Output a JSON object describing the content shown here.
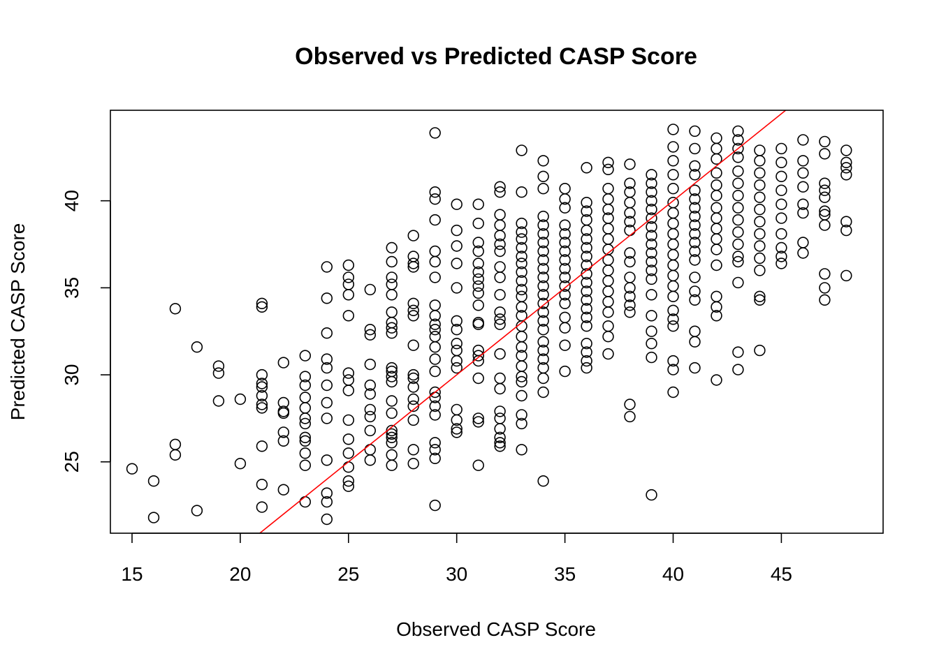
{
  "chart_data": {
    "type": "scatter",
    "title": "Observed vs Predicted CASP Score",
    "xlabel": "Observed CASP Score",
    "ylabel": "Predicted CASP Score",
    "xlim": [
      14,
      49.7
    ],
    "ylim": [
      20.9,
      45.2
    ],
    "xticks": [
      "15",
      "20",
      "25",
      "30",
      "35",
      "40",
      "45"
    ],
    "yticks": [
      "25",
      "30",
      "35",
      "40"
    ],
    "grid": false,
    "colors": {
      "points": "#000000",
      "reference_line": "#ff0000"
    },
    "reference_line": {
      "type": "identity",
      "slope": 1,
      "intercept": 0
    },
    "points": [
      [
        15,
        24.6
      ],
      [
        16,
        23.9
      ],
      [
        16,
        21.8
      ],
      [
        17,
        33.8
      ],
      [
        17,
        26.0
      ],
      [
        17,
        25.4
      ],
      [
        18,
        31.6
      ],
      [
        18,
        22.2
      ],
      [
        19,
        30.5
      ],
      [
        19,
        30.1
      ],
      [
        19,
        28.5
      ],
      [
        20,
        28.6
      ],
      [
        20,
        24.9
      ],
      [
        21,
        34.1
      ],
      [
        21,
        33.9
      ],
      [
        21,
        30.0
      ],
      [
        21,
        29.5
      ],
      [
        21,
        29.3
      ],
      [
        21,
        28.8
      ],
      [
        21,
        28.3
      ],
      [
        21,
        28.1
      ],
      [
        21,
        25.9
      ],
      [
        21,
        23.7
      ],
      [
        21,
        22.4
      ],
      [
        22,
        30.7
      ],
      [
        22,
        28.4
      ],
      [
        22,
        27.9
      ],
      [
        22,
        27.8
      ],
      [
        22,
        26.7
      ],
      [
        22,
        26.2
      ],
      [
        22,
        23.4
      ],
      [
        23,
        31.1
      ],
      [
        23,
        29.9
      ],
      [
        23,
        29.4
      ],
      [
        23,
        28.7
      ],
      [
        23,
        28.1
      ],
      [
        23,
        27.5
      ],
      [
        23,
        27.2
      ],
      [
        23,
        26.4
      ],
      [
        23,
        26.2
      ],
      [
        23,
        25.5
      ],
      [
        23,
        24.8
      ],
      [
        23,
        22.7
      ],
      [
        24,
        36.2
      ],
      [
        24,
        34.4
      ],
      [
        24,
        32.4
      ],
      [
        24,
        30.9
      ],
      [
        24,
        30.4
      ],
      [
        24,
        29.4
      ],
      [
        24,
        28.4
      ],
      [
        24,
        27.5
      ],
      [
        24,
        25.1
      ],
      [
        24,
        23.2
      ],
      [
        24,
        22.7
      ],
      [
        24,
        21.7
      ],
      [
        25,
        36.3
      ],
      [
        25,
        35.6
      ],
      [
        25,
        35.2
      ],
      [
        25,
        34.6
      ],
      [
        25,
        33.4
      ],
      [
        25,
        30.1
      ],
      [
        25,
        29.7
      ],
      [
        25,
        29.1
      ],
      [
        25,
        27.4
      ],
      [
        25,
        26.3
      ],
      [
        25,
        25.5
      ],
      [
        25,
        24.7
      ],
      [
        25,
        23.9
      ],
      [
        25,
        23.6
      ],
      [
        26,
        34.9
      ],
      [
        26,
        32.6
      ],
      [
        26,
        32.3
      ],
      [
        26,
        30.6
      ],
      [
        26,
        29.4
      ],
      [
        26,
        28.9
      ],
      [
        26,
        28.0
      ],
      [
        26,
        27.6
      ],
      [
        26,
        26.8
      ],
      [
        26,
        25.7
      ],
      [
        26,
        25.1
      ],
      [
        27,
        37.3
      ],
      [
        27,
        36.5
      ],
      [
        27,
        35.6
      ],
      [
        27,
        35.2
      ],
      [
        27,
        34.6
      ],
      [
        27,
        33.6
      ],
      [
        27,
        33.0
      ],
      [
        27,
        32.7
      ],
      [
        27,
        32.4
      ],
      [
        27,
        30.4
      ],
      [
        27,
        30.2
      ],
      [
        27,
        29.9
      ],
      [
        27,
        29.6
      ],
      [
        27,
        28.5
      ],
      [
        27,
        27.8
      ],
      [
        27,
        26.8
      ],
      [
        27,
        26.6
      ],
      [
        27,
        26.4
      ],
      [
        27,
        26.1
      ],
      [
        27,
        25.4
      ],
      [
        27,
        24.8
      ],
      [
        28,
        38.0
      ],
      [
        28,
        36.8
      ],
      [
        28,
        36.4
      ],
      [
        28,
        36.2
      ],
      [
        28,
        34.1
      ],
      [
        28,
        33.7
      ],
      [
        28,
        33.4
      ],
      [
        28,
        31.7
      ],
      [
        28,
        30.0
      ],
      [
        28,
        29.8
      ],
      [
        28,
        29.3
      ],
      [
        28,
        28.6
      ],
      [
        28,
        28.2
      ],
      [
        28,
        27.4
      ],
      [
        28,
        25.7
      ],
      [
        28,
        24.9
      ],
      [
        29,
        43.9
      ],
      [
        29,
        40.5
      ],
      [
        29,
        40.1
      ],
      [
        29,
        38.9
      ],
      [
        29,
        37.1
      ],
      [
        29,
        36.5
      ],
      [
        29,
        35.6
      ],
      [
        29,
        34.0
      ],
      [
        29,
        33.4
      ],
      [
        29,
        32.9
      ],
      [
        29,
        32.6
      ],
      [
        29,
        32.2
      ],
      [
        29,
        31.6
      ],
      [
        29,
        30.9
      ],
      [
        29,
        30.2
      ],
      [
        29,
        29.0
      ],
      [
        29,
        28.7
      ],
      [
        29,
        28.2
      ],
      [
        29,
        27.7
      ],
      [
        29,
        26.1
      ],
      [
        29,
        25.7
      ],
      [
        29,
        25.2
      ],
      [
        29,
        22.5
      ],
      [
        30,
        39.8
      ],
      [
        30,
        38.3
      ],
      [
        30,
        37.4
      ],
      [
        30,
        36.4
      ],
      [
        30,
        35.0
      ],
      [
        30,
        33.1
      ],
      [
        30,
        32.6
      ],
      [
        30,
        31.8
      ],
      [
        30,
        31.4
      ],
      [
        30,
        30.8
      ],
      [
        30,
        30.4
      ],
      [
        30,
        28.0
      ],
      [
        30,
        27.4
      ],
      [
        30,
        26.9
      ],
      [
        30,
        26.7
      ],
      [
        31,
        39.8
      ],
      [
        31,
        38.7
      ],
      [
        31,
        37.6
      ],
      [
        31,
        37.1
      ],
      [
        31,
        36.4
      ],
      [
        31,
        35.9
      ],
      [
        31,
        35.5
      ],
      [
        31,
        35.1
      ],
      [
        31,
        34.7
      ],
      [
        31,
        34.0
      ],
      [
        31,
        33.0
      ],
      [
        31,
        32.9
      ],
      [
        31,
        31.4
      ],
      [
        31,
        31.1
      ],
      [
        31,
        30.8
      ],
      [
        31,
        29.8
      ],
      [
        31,
        27.5
      ],
      [
        31,
        27.3
      ],
      [
        31,
        24.8
      ],
      [
        32,
        40.8
      ],
      [
        32,
        40.5
      ],
      [
        32,
        39.2
      ],
      [
        32,
        38.6
      ],
      [
        32,
        38.0
      ],
      [
        32,
        37.5
      ],
      [
        32,
        37.1
      ],
      [
        32,
        36.2
      ],
      [
        32,
        35.6
      ],
      [
        32,
        34.6
      ],
      [
        32,
        33.6
      ],
      [
        32,
        33.2
      ],
      [
        32,
        32.9
      ],
      [
        32,
        31.2
      ],
      [
        32,
        29.8
      ],
      [
        32,
        29.2
      ],
      [
        32,
        27.9
      ],
      [
        32,
        27.5
      ],
      [
        32,
        26.9
      ],
      [
        32,
        26.4
      ],
      [
        32,
        26.1
      ],
      [
        32,
        25.9
      ],
      [
        33,
        42.9
      ],
      [
        33,
        40.5
      ],
      [
        33,
        38.7
      ],
      [
        33,
        38.2
      ],
      [
        33,
        37.8
      ],
      [
        33,
        37.3
      ],
      [
        33,
        36.8
      ],
      [
        33,
        36.4
      ],
      [
        33,
        35.9
      ],
      [
        33,
        35.4
      ],
      [
        33,
        34.9
      ],
      [
        33,
        34.5
      ],
      [
        33,
        33.9
      ],
      [
        33,
        33.4
      ],
      [
        33,
        32.8
      ],
      [
        33,
        32.2
      ],
      [
        33,
        31.6
      ],
      [
        33,
        31.1
      ],
      [
        33,
        30.5
      ],
      [
        33,
        29.9
      ],
      [
        33,
        29.6
      ],
      [
        33,
        28.8
      ],
      [
        33,
        27.7
      ],
      [
        33,
        27.2
      ],
      [
        33,
        25.7
      ],
      [
        34,
        42.3
      ],
      [
        34,
        41.4
      ],
      [
        34,
        40.7
      ],
      [
        34,
        39.1
      ],
      [
        34,
        38.6
      ],
      [
        34,
        38.1
      ],
      [
        34,
        37.6
      ],
      [
        34,
        37.1
      ],
      [
        34,
        36.6
      ],
      [
        34,
        36.1
      ],
      [
        34,
        35.6
      ],
      [
        34,
        35.1
      ],
      [
        34,
        34.6
      ],
      [
        34,
        34.1
      ],
      [
        34,
        33.6
      ],
      [
        34,
        33.1
      ],
      [
        34,
        32.6
      ],
      [
        34,
        31.9
      ],
      [
        34,
        31.4
      ],
      [
        34,
        30.9
      ],
      [
        34,
        30.4
      ],
      [
        34,
        29.8
      ],
      [
        34,
        29.0
      ],
      [
        34,
        23.9
      ],
      [
        35,
        40.7
      ],
      [
        35,
        40.1
      ],
      [
        35,
        39.6
      ],
      [
        35,
        38.6
      ],
      [
        35,
        38.1
      ],
      [
        35,
        37.6
      ],
      [
        35,
        37.1
      ],
      [
        35,
        36.6
      ],
      [
        35,
        36.1
      ],
      [
        35,
        35.6
      ],
      [
        35,
        35.1
      ],
      [
        35,
        34.6
      ],
      [
        35,
        34.1
      ],
      [
        35,
        33.3
      ],
      [
        35,
        32.7
      ],
      [
        35,
        31.7
      ],
      [
        35,
        30.2
      ],
      [
        36,
        41.9
      ],
      [
        36,
        39.9
      ],
      [
        36,
        39.4
      ],
      [
        36,
        38.9
      ],
      [
        36,
        38.3
      ],
      [
        36,
        37.8
      ],
      [
        36,
        37.3
      ],
      [
        36,
        36.8
      ],
      [
        36,
        36.3
      ],
      [
        36,
        35.8
      ],
      [
        36,
        35.3
      ],
      [
        36,
        34.8
      ],
      [
        36,
        34.3
      ],
      [
        36,
        33.8
      ],
      [
        36,
        33.3
      ],
      [
        36,
        32.8
      ],
      [
        36,
        31.8
      ],
      [
        36,
        31.3
      ],
      [
        36,
        30.8
      ],
      [
        36,
        30.4
      ],
      [
        37,
        42.2
      ],
      [
        37,
        41.8
      ],
      [
        37,
        40.7
      ],
      [
        37,
        40.1
      ],
      [
        37,
        39.5
      ],
      [
        37,
        39.0
      ],
      [
        37,
        38.4
      ],
      [
        37,
        37.8
      ],
      [
        37,
        37.2
      ],
      [
        37,
        36.6
      ],
      [
        37,
        36.0
      ],
      [
        37,
        35.4
      ],
      [
        37,
        34.8
      ],
      [
        37,
        34.2
      ],
      [
        37,
        33.6
      ],
      [
        37,
        32.8
      ],
      [
        37,
        32.2
      ],
      [
        37,
        31.2
      ],
      [
        38,
        42.1
      ],
      [
        38,
        41.0
      ],
      [
        38,
        40.5
      ],
      [
        38,
        39.9
      ],
      [
        38,
        39.3
      ],
      [
        38,
        38.8
      ],
      [
        38,
        38.3
      ],
      [
        38,
        37.0
      ],
      [
        38,
        36.5
      ],
      [
        38,
        35.6
      ],
      [
        38,
        35.0
      ],
      [
        38,
        34.5
      ],
      [
        38,
        34.0
      ],
      [
        38,
        33.6
      ],
      [
        38,
        28.3
      ],
      [
        38,
        27.6
      ],
      [
        39,
        41.5
      ],
      [
        39,
        41.0
      ],
      [
        39,
        40.5
      ],
      [
        39,
        40.0
      ],
      [
        39,
        39.5
      ],
      [
        39,
        39.0
      ],
      [
        39,
        38.5
      ],
      [
        39,
        38.0
      ],
      [
        39,
        37.5
      ],
      [
        39,
        37.0
      ],
      [
        39,
        36.5
      ],
      [
        39,
        36.0
      ],
      [
        39,
        35.5
      ],
      [
        39,
        34.6
      ],
      [
        39,
        33.4
      ],
      [
        39,
        32.5
      ],
      [
        39,
        31.8
      ],
      [
        39,
        31.0
      ],
      [
        39,
        23.1
      ],
      [
        40,
        44.1
      ],
      [
        40,
        43.1
      ],
      [
        40,
        42.3
      ],
      [
        40,
        41.5
      ],
      [
        40,
        40.7
      ],
      [
        40,
        39.9
      ],
      [
        40,
        39.3
      ],
      [
        40,
        38.7
      ],
      [
        40,
        38.1
      ],
      [
        40,
        37.5
      ],
      [
        40,
        36.9
      ],
      [
        40,
        36.3
      ],
      [
        40,
        35.7
      ],
      [
        40,
        35.1
      ],
      [
        40,
        34.5
      ],
      [
        40,
        33.7
      ],
      [
        40,
        33.2
      ],
      [
        40,
        32.8
      ],
      [
        40,
        30.8
      ],
      [
        40,
        30.3
      ],
      [
        40,
        29.0
      ],
      [
        41,
        44.0
      ],
      [
        41,
        43.0
      ],
      [
        41,
        42.0
      ],
      [
        41,
        41.5
      ],
      [
        41,
        40.6
      ],
      [
        41,
        40.1
      ],
      [
        41,
        39.6
      ],
      [
        41,
        39.1
      ],
      [
        41,
        38.6
      ],
      [
        41,
        38.1
      ],
      [
        41,
        37.6
      ],
      [
        41,
        37.1
      ],
      [
        41,
        36.6
      ],
      [
        41,
        35.6
      ],
      [
        41,
        34.8
      ],
      [
        41,
        34.3
      ],
      [
        41,
        32.5
      ],
      [
        41,
        31.9
      ],
      [
        41,
        30.4
      ],
      [
        42,
        43.6
      ],
      [
        42,
        43.0
      ],
      [
        42,
        42.4
      ],
      [
        42,
        41.6
      ],
      [
        42,
        40.9
      ],
      [
        42,
        40.3
      ],
      [
        42,
        39.6
      ],
      [
        42,
        39.0
      ],
      [
        42,
        38.4
      ],
      [
        42,
        37.8
      ],
      [
        42,
        37.2
      ],
      [
        42,
        36.3
      ],
      [
        42,
        34.5
      ],
      [
        42,
        33.9
      ],
      [
        42,
        33.4
      ],
      [
        42,
        29.7
      ],
      [
        43,
        44.0
      ],
      [
        43,
        43.5
      ],
      [
        43,
        43.0
      ],
      [
        43,
        42.5
      ],
      [
        43,
        41.7
      ],
      [
        43,
        41.0
      ],
      [
        43,
        40.3
      ],
      [
        43,
        39.6
      ],
      [
        43,
        38.9
      ],
      [
        43,
        38.2
      ],
      [
        43,
        37.5
      ],
      [
        43,
        36.8
      ],
      [
        43,
        36.5
      ],
      [
        43,
        35.3
      ],
      [
        43,
        31.3
      ],
      [
        43,
        30.3
      ],
      [
        44,
        42.9
      ],
      [
        44,
        42.3
      ],
      [
        44,
        41.6
      ],
      [
        44,
        40.9
      ],
      [
        44,
        40.2
      ],
      [
        44,
        39.5
      ],
      [
        44,
        38.8
      ],
      [
        44,
        38.1
      ],
      [
        44,
        37.4
      ],
      [
        44,
        36.7
      ],
      [
        44,
        36.0
      ],
      [
        44,
        34.5
      ],
      [
        44,
        34.3
      ],
      [
        44,
        31.4
      ],
      [
        45,
        43.0
      ],
      [
        45,
        42.2
      ],
      [
        45,
        41.4
      ],
      [
        45,
        40.6
      ],
      [
        45,
        39.8
      ],
      [
        45,
        39.0
      ],
      [
        45,
        38.1
      ],
      [
        45,
        37.3
      ],
      [
        45,
        36.8
      ],
      [
        45,
        36.4
      ],
      [
        46,
        43.5
      ],
      [
        46,
        42.3
      ],
      [
        46,
        41.6
      ],
      [
        46,
        40.8
      ],
      [
        46,
        39.8
      ],
      [
        46,
        39.3
      ],
      [
        46,
        37.6
      ],
      [
        46,
        37.0
      ],
      [
        47,
        43.4
      ],
      [
        47,
        42.7
      ],
      [
        47,
        41.0
      ],
      [
        47,
        40.6
      ],
      [
        47,
        40.2
      ],
      [
        47,
        39.4
      ],
      [
        47,
        39.2
      ],
      [
        47,
        38.6
      ],
      [
        47,
        35.8
      ],
      [
        47,
        35.0
      ],
      [
        47,
        34.3
      ],
      [
        48,
        42.9
      ],
      [
        48,
        42.2
      ],
      [
        48,
        41.9
      ],
      [
        48,
        41.5
      ],
      [
        48,
        38.8
      ],
      [
        48,
        38.3
      ],
      [
        48,
        35.7
      ]
    ]
  }
}
